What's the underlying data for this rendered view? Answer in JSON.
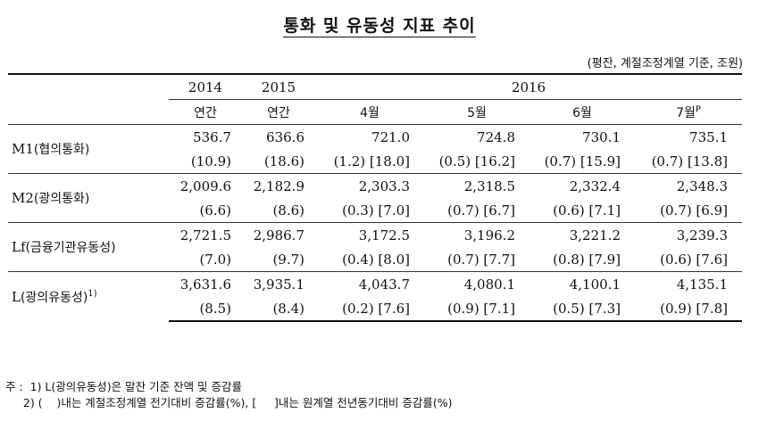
{
  "title": "통화 및 유동성 지표 추이",
  "unit_note": "(평잔, 계절조정계열 기준, 조원)",
  "header": {
    "year_2014": "2014",
    "year_2015": "2015",
    "year_2016": "2016",
    "annual_2014": "연간",
    "annual_2015": "연간",
    "months": [
      "4월",
      "5월",
      "6월",
      "7월"
    ],
    "preliminary_mark": "P"
  },
  "rows": [
    {
      "label_code": "M1",
      "label_ko": "(협의통화)",
      "footnote": "",
      "values": [
        "536.7",
        "636.6",
        "721.0",
        "724.8",
        "730.1",
        "735.1"
      ],
      "changes": [
        "(10.9)",
        "(18.6)",
        "(1.2) [18.0]",
        "(0.5) [16.2]",
        "(0.7) [15.9]",
        "(0.7) [13.8]"
      ]
    },
    {
      "label_code": "M2",
      "label_ko": "(광의통화)",
      "footnote": "",
      "values": [
        "2,009.6",
        "2,182.9",
        "2,303.3",
        "2,318.5",
        "2,332.4",
        "2,348.3"
      ],
      "changes": [
        "(6.6)",
        "(8.6)",
        "(0.3)  [7.0]",
        "(0.7)  [6.7]",
        "(0.6)  [7.1]",
        "(0.7)  [6.9]"
      ]
    },
    {
      "label_code": "Lf",
      "label_ko": "(금융기관유동성)",
      "footnote": "",
      "values": [
        "2,721.5",
        "2,986.7",
        "3,172.5",
        "3,196.2",
        "3,221.2",
        "3,239.3"
      ],
      "changes": [
        "(7.0)",
        "(9.7)",
        "(0.4)  [8.0]",
        "(0.7)  [7.7]",
        "(0.8)  [7.9]",
        "(0.6)  [7.6]"
      ]
    },
    {
      "label_code": "L",
      "label_ko": "(광의유동성)",
      "footnote": "1)",
      "values": [
        "3,631.6",
        "3,935.1",
        "4,043.7",
        "4,080.1",
        "4,100.1",
        "4,135.1"
      ],
      "changes": [
        "(8.5)",
        "(8.4)",
        "(0.2)  [7.6]",
        "(0.9)  [7.1]",
        "(0.5)  [7.3]",
        "(0.9)  [7.8]"
      ]
    }
  ],
  "notes": {
    "line1": "주 :  1) L(광의유동성)은 말잔 기준 잔액 및 증감률",
    "line2": "     2) (    )내는 계절조정계열 전기대비 증감률(%), [     ]내는 원계열 전년동기대비 증감률(%)"
  }
}
